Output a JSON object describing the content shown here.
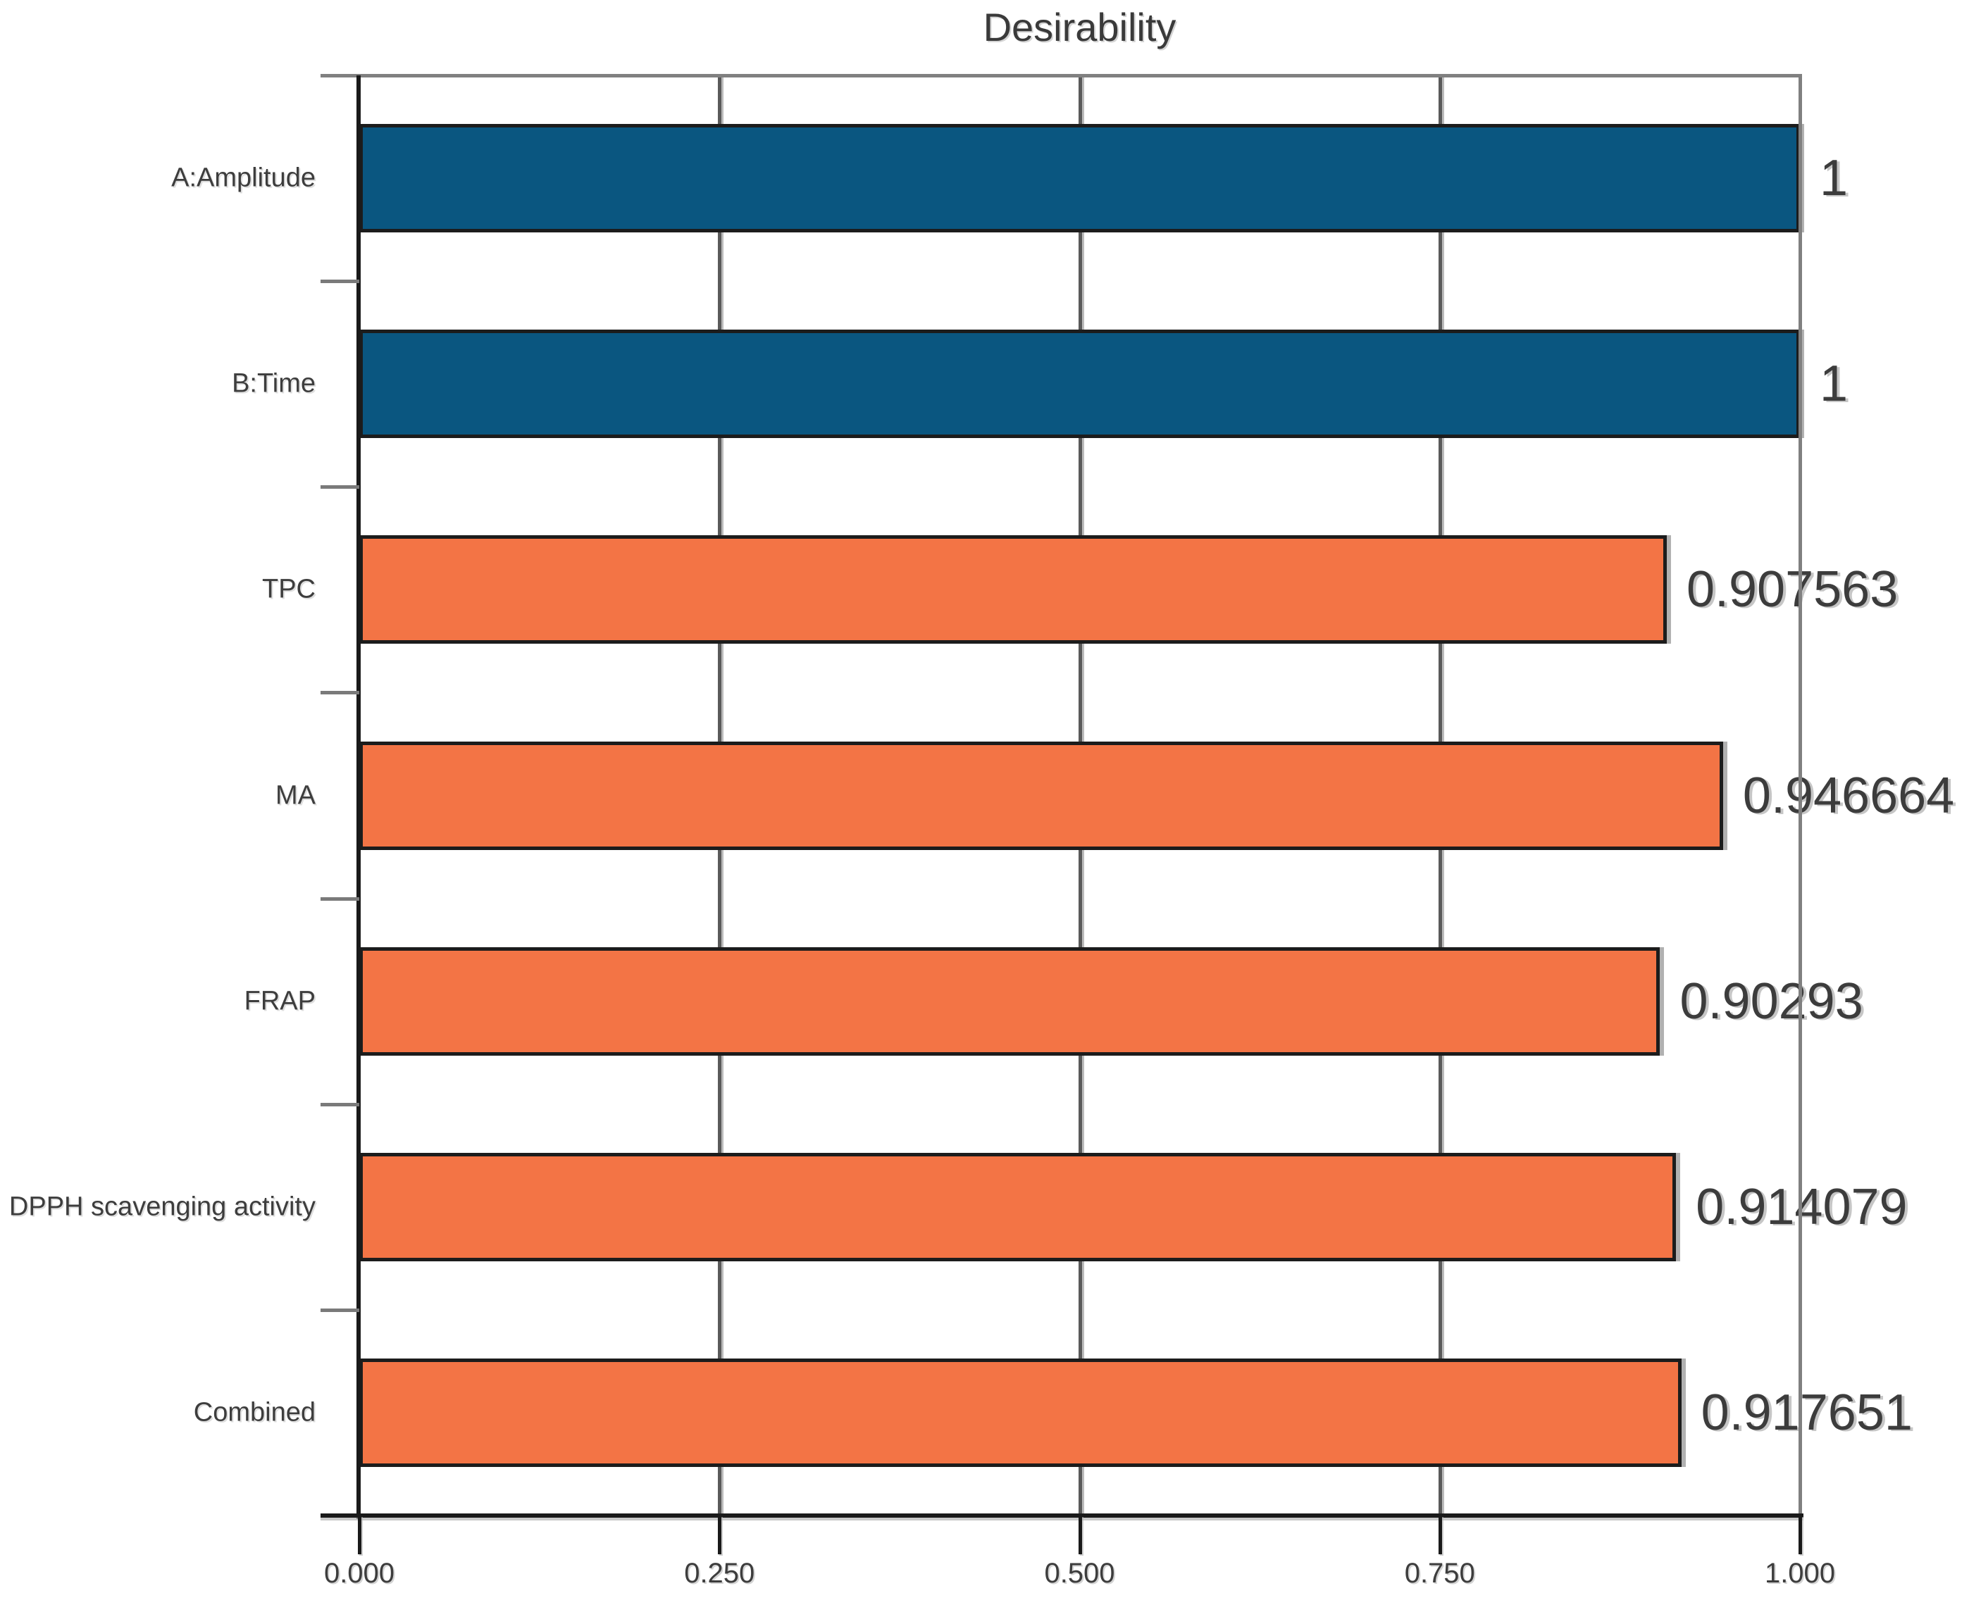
{
  "chart_data": {
    "type": "bar",
    "orientation": "horizontal",
    "title": "Desirability",
    "categories": [
      "A:Amplitude",
      "B:Time",
      "TPC",
      "MA",
      "FRAP",
      "DPPH scavenging activity",
      "Combined"
    ],
    "values": [
      1,
      1,
      0.907563,
      0.946664,
      0.90293,
      0.914079,
      0.917651
    ],
    "value_labels": [
      "1",
      "1",
      "0.907563",
      "0.946664",
      "0.90293",
      "0.914079",
      "0.917651"
    ],
    "bar_types": [
      "factor",
      "factor",
      "response",
      "response",
      "response",
      "response",
      "response"
    ],
    "x_ticks": [
      {
        "label": "0.000",
        "value": 0.0
      },
      {
        "label": "0.250",
        "value": 0.25
      },
      {
        "label": "0.500",
        "value": 0.5
      },
      {
        "label": "0.750",
        "value": 0.75
      },
      {
        "label": "1.000",
        "value": 1.0
      }
    ],
    "xlim": [
      0,
      1
    ],
    "grid": true,
    "legend": "none",
    "colors": {
      "factor": "#0a5680",
      "response": "#f37445",
      "bar_border": "#1c1c1c",
      "axis": "#1a1a1a",
      "frame": "#808080",
      "gridline": "#5a5a5a",
      "text": "#3d3d3d"
    }
  }
}
